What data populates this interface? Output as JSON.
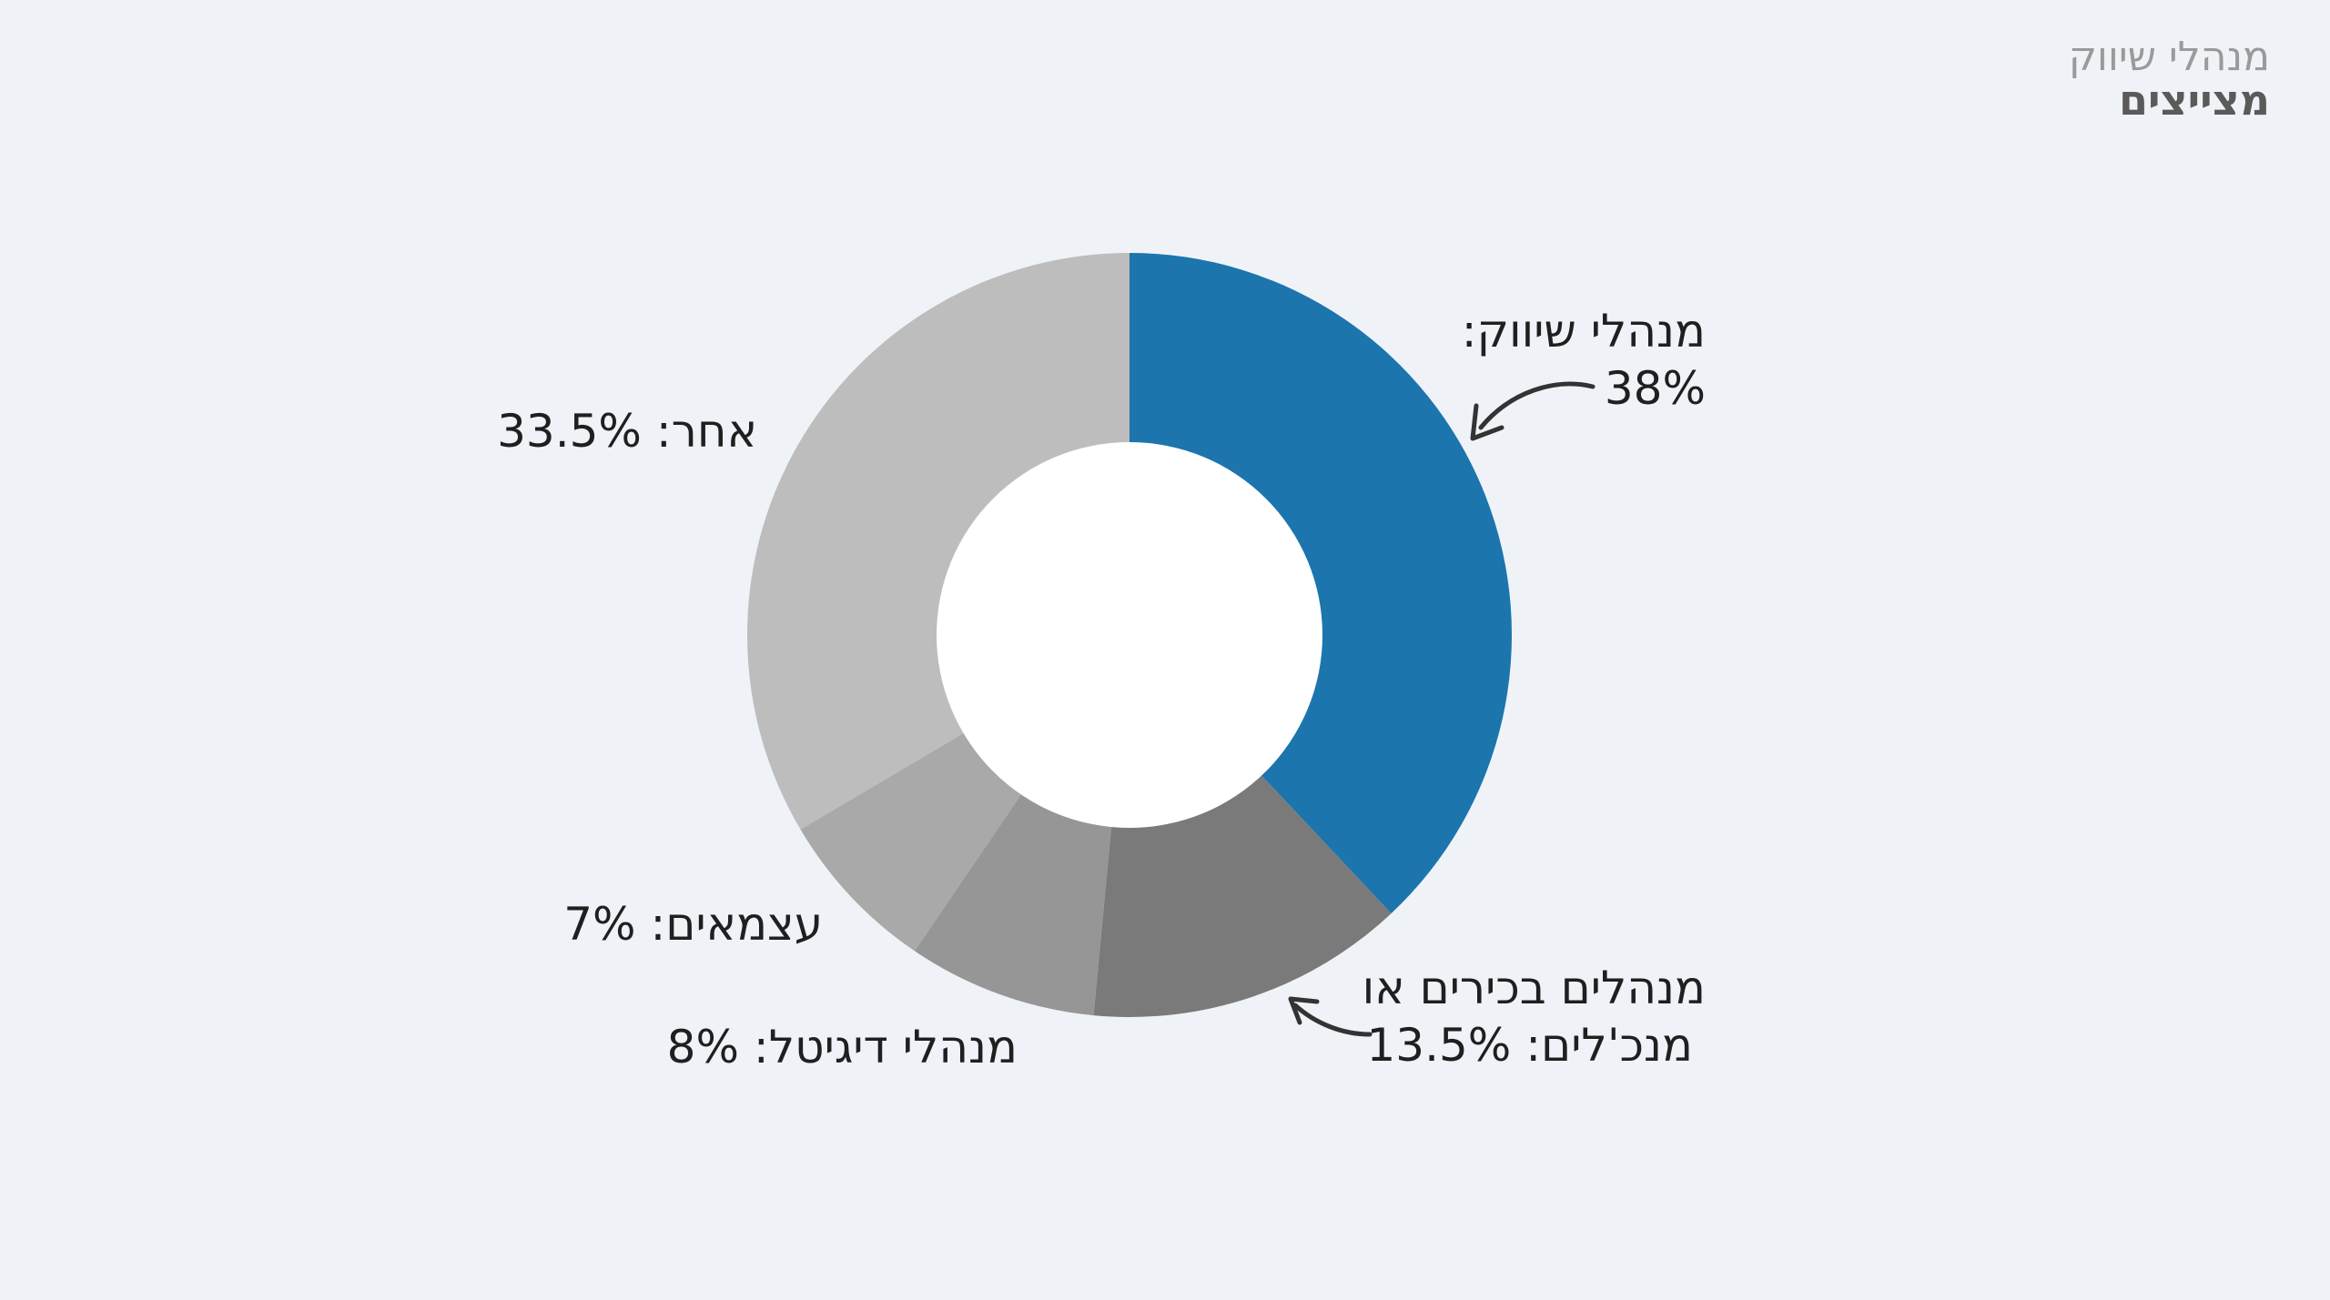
{
  "brand": {
    "line1": "מנהלי שיווק",
    "line2": "מצייצים"
  },
  "colors": {
    "background": "#eff3f7",
    "hole": "#ffffff",
    "marketing": "#1c75ad",
    "senior": "#7a7a7a",
    "digital": "#969696",
    "freelance": "#a9a9a9",
    "other": "#bdbdbd",
    "arrow": "#333333"
  },
  "chart_data": {
    "type": "pie",
    "variant": "donut",
    "start_angle": "12 o'clock",
    "direction": "clockwise",
    "categories": [
      "מנהלי שיווק",
      "מנהלים בכירים או מנכ'לים",
      "מנהלי דיגיטל",
      "עצמאים",
      "אחר"
    ],
    "values": [
      38,
      13.5,
      8,
      7,
      33.5
    ],
    "labels": [
      {
        "text": "מנהלי שיווק:",
        "value": "38%"
      },
      {
        "text": "מנהלים בכירים או",
        "text2": "מנכ'לים:",
        "value": "13.5%"
      },
      {
        "text": "מנהלי דיגיטל:",
        "value": "8%"
      },
      {
        "text": "עצמאים:",
        "value": "7%"
      },
      {
        "text": "אחר:",
        "value": "33.5%"
      }
    ]
  }
}
